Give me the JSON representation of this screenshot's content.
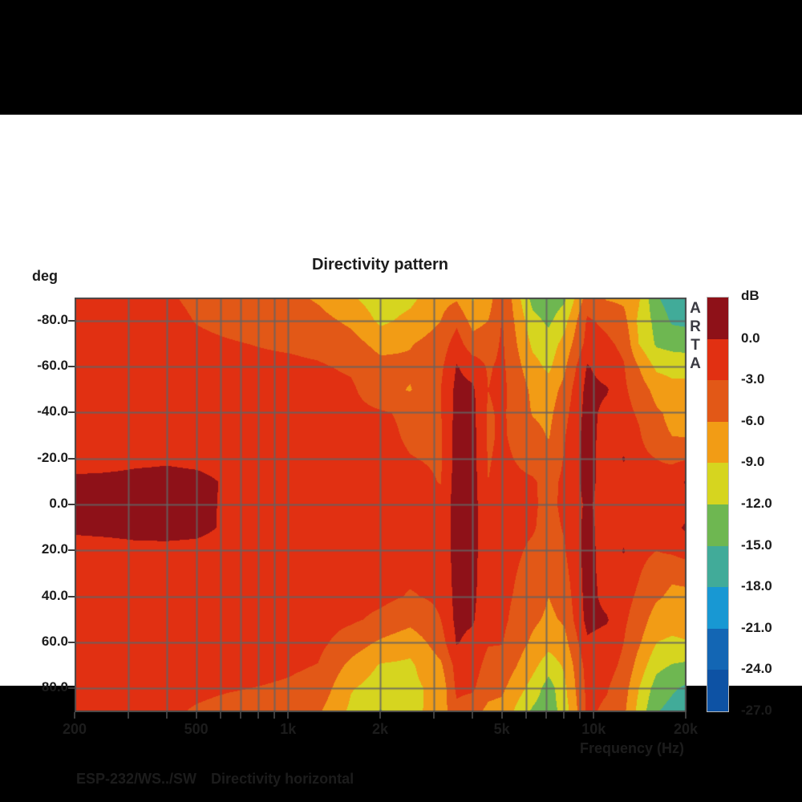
{
  "window": {
    "letterbox_color": "#000000",
    "content_background": "#ffffff"
  },
  "watermark": "ARTA",
  "footer": {
    "device": "ESP-232/WS../SW",
    "measurement": "Directivity horizontal"
  },
  "chart_data": {
    "type": "heatmap",
    "title": "Directivity pattern",
    "xlabel": "Frequency (Hz)",
    "ylabel": "deg",
    "x_scale": "log",
    "x_range_hz": [
      200,
      20000
    ],
    "y_range_deg": [
      -90,
      90
    ],
    "grid": true,
    "grid_color": "rgba(100,100,100,0.85)",
    "border_color": "#4a4a4a",
    "x_ticks": [
      {
        "f": 200,
        "label": "200"
      },
      {
        "f": 500,
        "label": "500"
      },
      {
        "f": 1000,
        "label": "1k"
      },
      {
        "f": 2000,
        "label": "2k"
      },
      {
        "f": 5000,
        "label": "5k"
      },
      {
        "f": 10000,
        "label": "10k"
      },
      {
        "f": 20000,
        "label": "20k"
      }
    ],
    "x_gridlines_hz": [
      300,
      400,
      500,
      600,
      700,
      800,
      900,
      1000,
      2000,
      3000,
      4000,
      5000,
      6000,
      7000,
      8000,
      9000,
      10000
    ],
    "y_ticks": [
      {
        "deg": -80,
        "label": "-80.0"
      },
      {
        "deg": -60,
        "label": "-60.0"
      },
      {
        "deg": -40,
        "label": "-40.0"
      },
      {
        "deg": -20,
        "label": "-20.0"
      },
      {
        "deg": 0,
        "label": "0.0"
      },
      {
        "deg": 20,
        "label": "20.0"
      },
      {
        "deg": 40,
        "label": "40.0"
      },
      {
        "deg": 60,
        "label": "60.0"
      },
      {
        "deg": 80,
        "label": "80.0"
      }
    ],
    "colorbar": {
      "title": "dB",
      "band_step_db": 3,
      "labels": [
        "0.0",
        "-3.0",
        "-6.0",
        "-9.0",
        "-12.0",
        "-15.0",
        "-18.0",
        "-21.0",
        "-24.0",
        "-27.0"
      ],
      "colors": [
        "#8e1118",
        "#e13012",
        "#e25817",
        "#f29c15",
        "#d6d51f",
        "#6eb751",
        "#41ab99",
        "#1898d3",
        "#1366b4",
        "#0d52a4"
      ]
    },
    "angles_deg": [
      -90,
      -80,
      -70,
      -60,
      -50,
      -40,
      -30,
      -20,
      -10,
      0,
      10,
      20,
      30,
      40,
      50,
      60,
      70,
      80,
      90
    ],
    "frequencies_hz": [
      200,
      250,
      315,
      400,
      500,
      630,
      800,
      1000,
      1250,
      1600,
      2000,
      2500,
      3150,
      3550,
      4000,
      4500,
      5000,
      6300,
      7100,
      8000,
      9500,
      11000,
      12500,
      14000,
      16000,
      18000,
      20000
    ],
    "values_db": [
      [
        -1.8,
        -1.8,
        -1.8,
        -1.8,
        -1.8,
        -1.8,
        -1.8,
        -1.8,
        0.9,
        1.3,
        0.8,
        -1.8,
        -1.8,
        -1.8,
        -1.8,
        -1.8,
        -1.8,
        -1.8,
        -1.8
      ],
      [
        -1.9,
        -1.8,
        -1.8,
        -1.8,
        -1.8,
        -1.8,
        -1.8,
        -1.5,
        1.0,
        1.4,
        1.0,
        -1.5,
        -1.8,
        -1.8,
        -1.8,
        -1.8,
        -1.8,
        -1.8,
        -1.8
      ],
      [
        -2.0,
        -1.9,
        -1.8,
        -1.8,
        -1.8,
        -1.8,
        -1.8,
        -0.8,
        1.1,
        1.5,
        1.1,
        -0.9,
        -1.8,
        -1.8,
        -1.8,
        -1.8,
        -1.8,
        -1.8,
        -1.8
      ],
      [
        -2.7,
        -2.2,
        -2.0,
        -1.9,
        -1.8,
        -1.8,
        -1.8,
        -0.5,
        1.2,
        1.5,
        1.1,
        -0.8,
        -1.8,
        -1.8,
        -1.8,
        -1.8,
        -1.8,
        -2.0,
        -2.5
      ],
      [
        -3.5,
        -3.1,
        -2.5,
        -2.0,
        -1.9,
        -1.8,
        -1.8,
        -0.9,
        1.0,
        1.2,
        0.9,
        -1.0,
        -1.8,
        -1.8,
        -1.8,
        -1.8,
        -1.9,
        -2.4,
        -3.3
      ],
      [
        -4.2,
        -3.6,
        -2.8,
        -2.2,
        -1.9,
        -1.8,
        -1.8,
        -1.4,
        -0.4,
        -0.6,
        -0.5,
        -1.4,
        -1.8,
        -1.8,
        -1.8,
        -1.8,
        -2.0,
        -2.8,
        -3.9
      ],
      [
        -4.6,
        -4.0,
        -3.1,
        -2.4,
        -2.0,
        -1.9,
        -1.8,
        -1.7,
        -1.5,
        -1.5,
        -1.5,
        -1.7,
        -1.8,
        -1.8,
        -1.8,
        -1.9,
        -2.2,
        -3.1,
        -4.3
      ],
      [
        -5.2,
        -4.3,
        -3.4,
        -2.4,
        -2.0,
        -1.9,
        -1.9,
        -1.8,
        -1.7,
        -1.6,
        -1.7,
        -1.8,
        -1.8,
        -1.8,
        -1.9,
        -2.0,
        -2.6,
        -3.4,
        -4.8
      ],
      [
        -6.4,
        -5.0,
        -3.8,
        -2.7,
        -2.1,
        -2.0,
        -1.9,
        -1.9,
        -1.8,
        -1.7,
        -1.8,
        -1.8,
        -1.9,
        -1.9,
        -2.0,
        -2.3,
        -3.1,
        -4.0,
        -5.6
      ],
      [
        -8.6,
        -6.6,
        -4.8,
        -3.4,
        -2.5,
        -2.1,
        -2.0,
        -1.9,
        -1.8,
        -1.8,
        -1.8,
        -1.9,
        -2.0,
        -2.1,
        -2.6,
        -4.4,
        -6.8,
        -8.8,
        -9.6
      ],
      [
        -10.6,
        -9.6,
        -7.0,
        -5.0,
        -5.0,
        -2.7,
        -2.2,
        -2.0,
        -1.9,
        -1.9,
        -1.9,
        -2.0,
        -2.1,
        -2.4,
        -3.6,
        -6.5,
        -9.3,
        -10.4,
        -12.2
      ],
      [
        -9.7,
        -8.2,
        -6.2,
        -5.4,
        -6.2,
        -3.5,
        -3.4,
        -2.9,
        -2.2,
        -2.0,
        -2.0,
        -2.1,
        -2.6,
        -3.2,
        -5.0,
        -8.0,
        -9.5,
        -9.8,
        -10.0
      ],
      [
        -7.0,
        -6.0,
        -4.6,
        -3.6,
        -3.0,
        -3.1,
        -3.4,
        -3.3,
        -3.1,
        -2.3,
        -2.1,
        -2.2,
        -2.4,
        -2.6,
        -3.0,
        -4.4,
        -6.5,
        -8.0,
        -7.6
      ],
      [
        -6.4,
        -3.6,
        -1.6,
        0.2,
        0.8,
        1.0,
        1.2,
        1.3,
        1.4,
        1.5,
        1.4,
        1.3,
        1.2,
        1.0,
        0.8,
        0.2,
        -1.9,
        -2.4,
        -3.8
      ],
      [
        -9.4,
        -7.0,
        -4.8,
        -1.2,
        0.5,
        0.9,
        1.0,
        1.1,
        1.2,
        1.3,
        1.2,
        1.1,
        1.0,
        0.8,
        0.4,
        -1.0,
        -1.7,
        -2.6,
        -4.8
      ],
      [
        -7.6,
        -6.0,
        -4.4,
        -3.3,
        -3.0,
        -3.4,
        -3.4,
        -3.2,
        -3.0,
        -2.6,
        -2.2,
        -2.2,
        -2.3,
        -2.4,
        -2.6,
        -2.8,
        -4.0,
        -5.0,
        -6.8
      ],
      [
        -2.8,
        -2.8,
        -2.6,
        -2.4,
        -2.3,
        -2.5,
        -2.6,
        -2.4,
        -2.2,
        -2.1,
        -2.1,
        -2.1,
        -2.2,
        -2.3,
        -2.4,
        -2.9,
        -4.0,
        -5.5,
        -7.0
      ],
      [
        -13.2,
        -11.0,
        -9.6,
        -8.0,
        -6.6,
        -6.2,
        -5.0,
        -4.0,
        -2.7,
        -2.7,
        -2.8,
        -3.4,
        -3.9,
        -4.4,
        -5.4,
        -6.6,
        -8.2,
        -10.2,
        -12.6
      ],
      [
        -14.2,
        -12.6,
        -10.6,
        -9.6,
        -7.6,
        -6.8,
        -6.2,
        -4.8,
        -3.8,
        -3.6,
        -3.8,
        -4.2,
        -5.4,
        -6.0,
        -6.6,
        -8.0,
        -10.6,
        -13.6,
        -13.8
      ],
      [
        -12.6,
        -10.0,
        -8.0,
        -6.5,
        -5.0,
        -4.0,
        -3.2,
        -2.8,
        -2.5,
        -2.5,
        -2.8,
        -3.2,
        -4.0,
        -4.8,
        -5.6,
        -7.0,
        -8.6,
        -9.6,
        -10.6
      ],
      [
        -4.5,
        -2.6,
        -2.0,
        0.3,
        1.0,
        1.2,
        1.3,
        1.3,
        1.2,
        0.6,
        1.0,
        1.2,
        1.2,
        1.2,
        1.0,
        -0.5,
        -1.8,
        -2.2,
        -2.5
      ],
      [
        -6.3,
        -3.6,
        -2.5,
        -1.6,
        0.3,
        -1.0,
        -1.5,
        -1.6,
        -1.6,
        -1.6,
        -1.6,
        -1.6,
        -1.4,
        -1.0,
        0.3,
        -1.3,
        -2.0,
        -2.8,
        -3.5
      ],
      [
        -6.6,
        -5.0,
        -3.6,
        -2.8,
        -2.5,
        -2.0,
        -1.4,
        0.2,
        -1.2,
        -1.6,
        -1.2,
        0.2,
        -1.4,
        -2.0,
        -2.5,
        -3.0,
        -3.6,
        -4.6,
        -5.4
      ],
      [
        -8.6,
        -9.6,
        -9.0,
        -6.0,
        -4.4,
        -3.4,
        -2.6,
        -2.0,
        -1.9,
        -1.9,
        -2.0,
        -2.2,
        -2.8,
        -3.5,
        -4.4,
        -5.6,
        -7.2,
        -9.0,
        -10.0
      ],
      [
        -14.6,
        -13.0,
        -12.4,
        -9.6,
        -7.0,
        -5.6,
        -5.4,
        -3.0,
        -2.2,
        -2.2,
        -2.5,
        -3.0,
        -4.5,
        -5.6,
        -7.4,
        -9.0,
        -11.2,
        -13.4,
        -14.8
      ],
      [
        -16.6,
        -15.4,
        -13.0,
        -10.0,
        -8.0,
        -6.6,
        -6.0,
        -3.5,
        -1.5,
        -1.8,
        -0.8,
        -2.5,
        -5.5,
        -6.6,
        -7.6,
        -9.6,
        -12.2,
        -14.6,
        -16.0
      ],
      [
        -17.4,
        -15.6,
        -13.4,
        -9.8,
        -8.2,
        -6.6,
        -6.2,
        -3.2,
        0.3,
        -1.2,
        0.4,
        -1.6,
        -5.2,
        -6.6,
        -7.6,
        -9.2,
        -12.6,
        -15.6,
        -17.2
      ]
    ]
  }
}
